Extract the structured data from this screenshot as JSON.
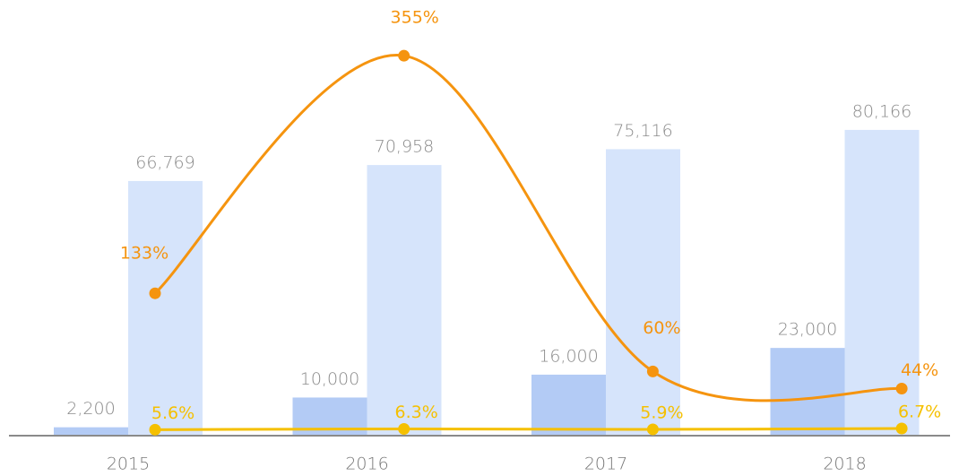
{
  "chart_data": {
    "type": "bar",
    "categories": [
      "2015",
      "2016",
      "2017",
      "2018"
    ],
    "ylim": [
      0,
      110000
    ],
    "y2lim": [
      0,
      392
    ],
    "series": [
      {
        "type": "bar",
        "color": "#b3cbf5",
        "values": [
          2200,
          10000,
          16000,
          23000
        ],
        "value_labels": [
          "2,200",
          "10,000",
          "16,000",
          "23,000"
        ]
      },
      {
        "type": "bar",
        "color": "#d6e4fb",
        "values": [
          66769,
          70958,
          75116,
          80166
        ],
        "value_labels": [
          "66,769",
          "70,958",
          "75,116",
          "80,166"
        ]
      },
      {
        "type": "line",
        "axis": "y2",
        "color": "#f5940f",
        "values": [
          133,
          355,
          60,
          44
        ],
        "value_labels": [
          "133%",
          "355%",
          "60%",
          "44%"
        ]
      },
      {
        "type": "line",
        "axis": "y2",
        "color": "#f5c000",
        "values": [
          5.6,
          6.3,
          5.9,
          6.7
        ],
        "value_labels": [
          "5.6%",
          "6.3%",
          "5.9%",
          "6.7%"
        ]
      }
    ]
  }
}
